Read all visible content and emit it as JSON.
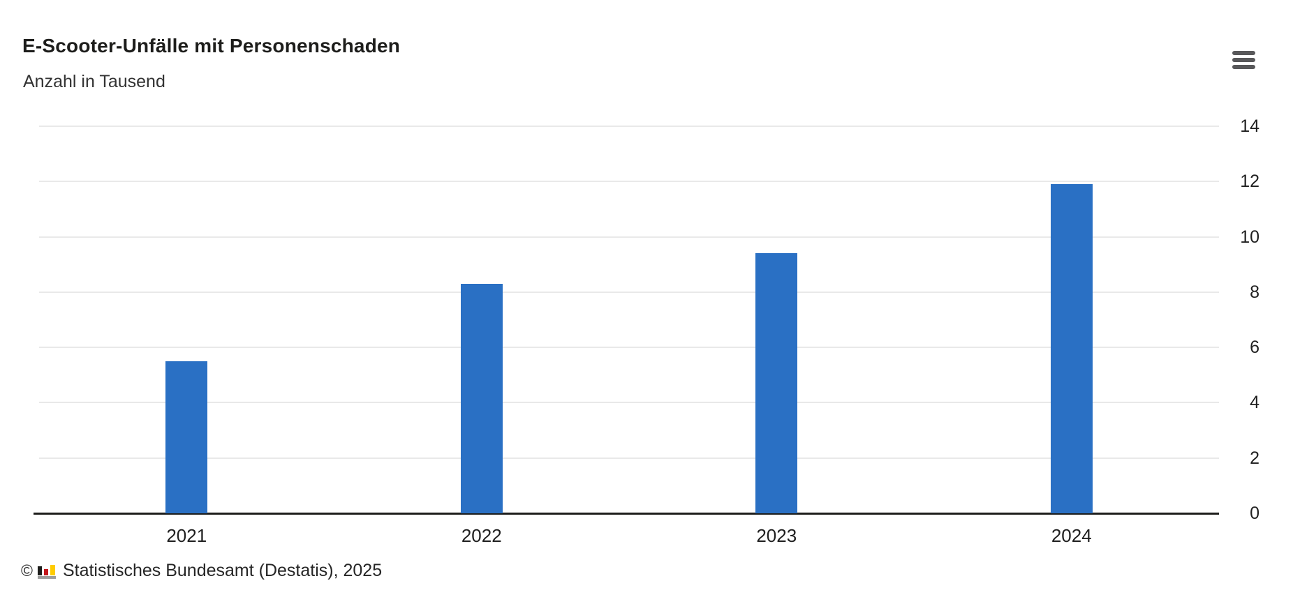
{
  "chart_data": {
    "type": "bar",
    "title": "E-Scooter-Unfälle mit Personenschaden",
    "subtitle": "Anzahl in Tausend",
    "categories": [
      "2021",
      "2022",
      "2023",
      "2024"
    ],
    "values": [
      5.5,
      8.3,
      9.4,
      11.9
    ],
    "xlabel": "",
    "ylabel": "Anzahl in Tausend",
    "ylim": [
      0,
      14
    ],
    "yticks": [
      0,
      2,
      4,
      6,
      8,
      10,
      12,
      14
    ],
    "y_axis_side": "right",
    "grid": true,
    "legend": "none",
    "bar_color": "#2a70c4"
  },
  "menu": {
    "icon": "hamburger-menu-icon"
  },
  "footer": {
    "copyright_symbol": "©",
    "logo": "destatis-mini-barchart-logo",
    "source_text": "Statistisches Bundesamt (Destatis), 2025"
  },
  "colors": {
    "bar": "#2a70c4",
    "gridline": "#e9e9e9",
    "axis": "#1d1d1b",
    "tick_text": "#1f1f1f",
    "title_text": "#1d1d1b",
    "subtitle_text": "#333333",
    "menu_icon": "#58585a",
    "logo_black": "#1d1d1b",
    "logo_red": "#c3161c",
    "logo_gold": "#ffcc00",
    "logo_base_gray": "#9d9d9c"
  }
}
